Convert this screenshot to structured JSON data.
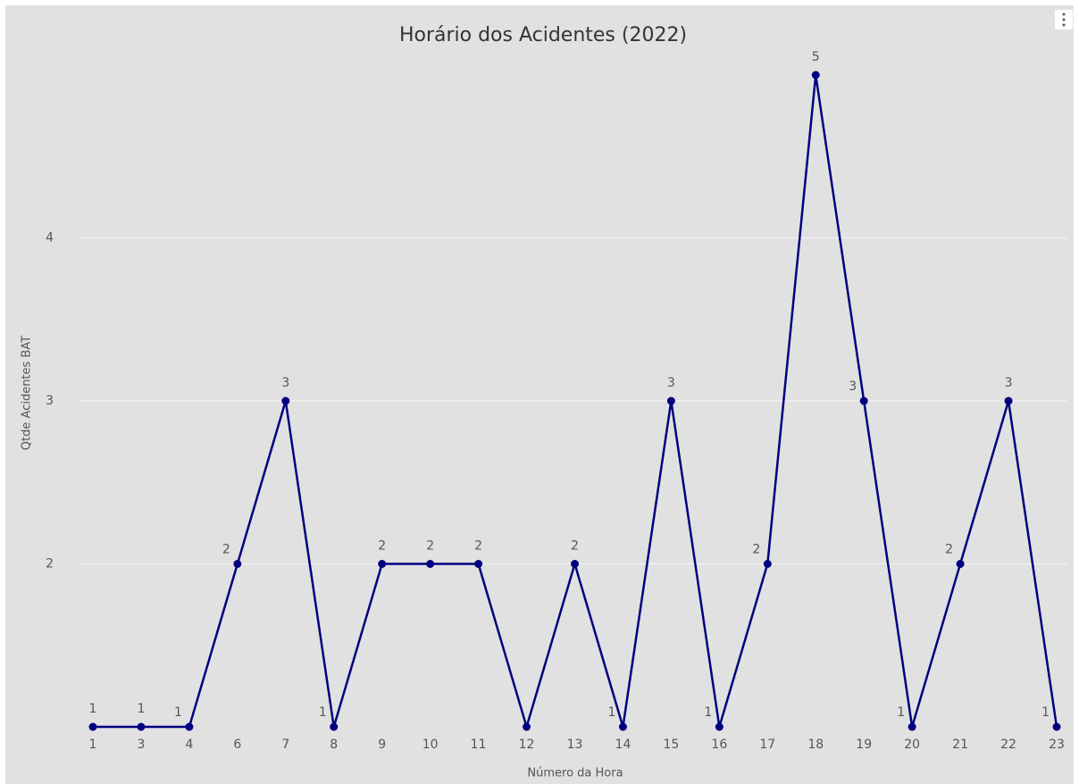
{
  "chart_data": {
    "type": "line",
    "title": "Horário dos Acidentes (2022)",
    "x_label": "Número da Hora",
    "y_label": "Qtde Acidentes BAT",
    "categories": [
      "1",
      "3",
      "4",
      "6",
      "7",
      "8",
      "9",
      "10",
      "11",
      "12",
      "13",
      "14",
      "15",
      "16",
      "17",
      "18",
      "19",
      "20",
      "21",
      "22",
      "23"
    ],
    "series": [
      {
        "name": "Qtde Acidentes BAT",
        "color": "#000080",
        "values": [
          1,
          1,
          1,
          2,
          3,
          1,
          2,
          2,
          2,
          1,
          2,
          1,
          3,
          1,
          2,
          5,
          3,
          1,
          2,
          3,
          1
        ],
        "value_labels": [
          "1",
          "1",
          "1",
          "2",
          "3",
          "1",
          "2",
          "2",
          "2",
          null,
          "2",
          "1",
          "3",
          "1",
          "2",
          "5",
          "3",
          "1",
          "2",
          "3",
          "1"
        ]
      }
    ],
    "ylim": [
      1,
      5
    ],
    "yticks": [
      2,
      3,
      4
    ],
    "grid": true
  }
}
